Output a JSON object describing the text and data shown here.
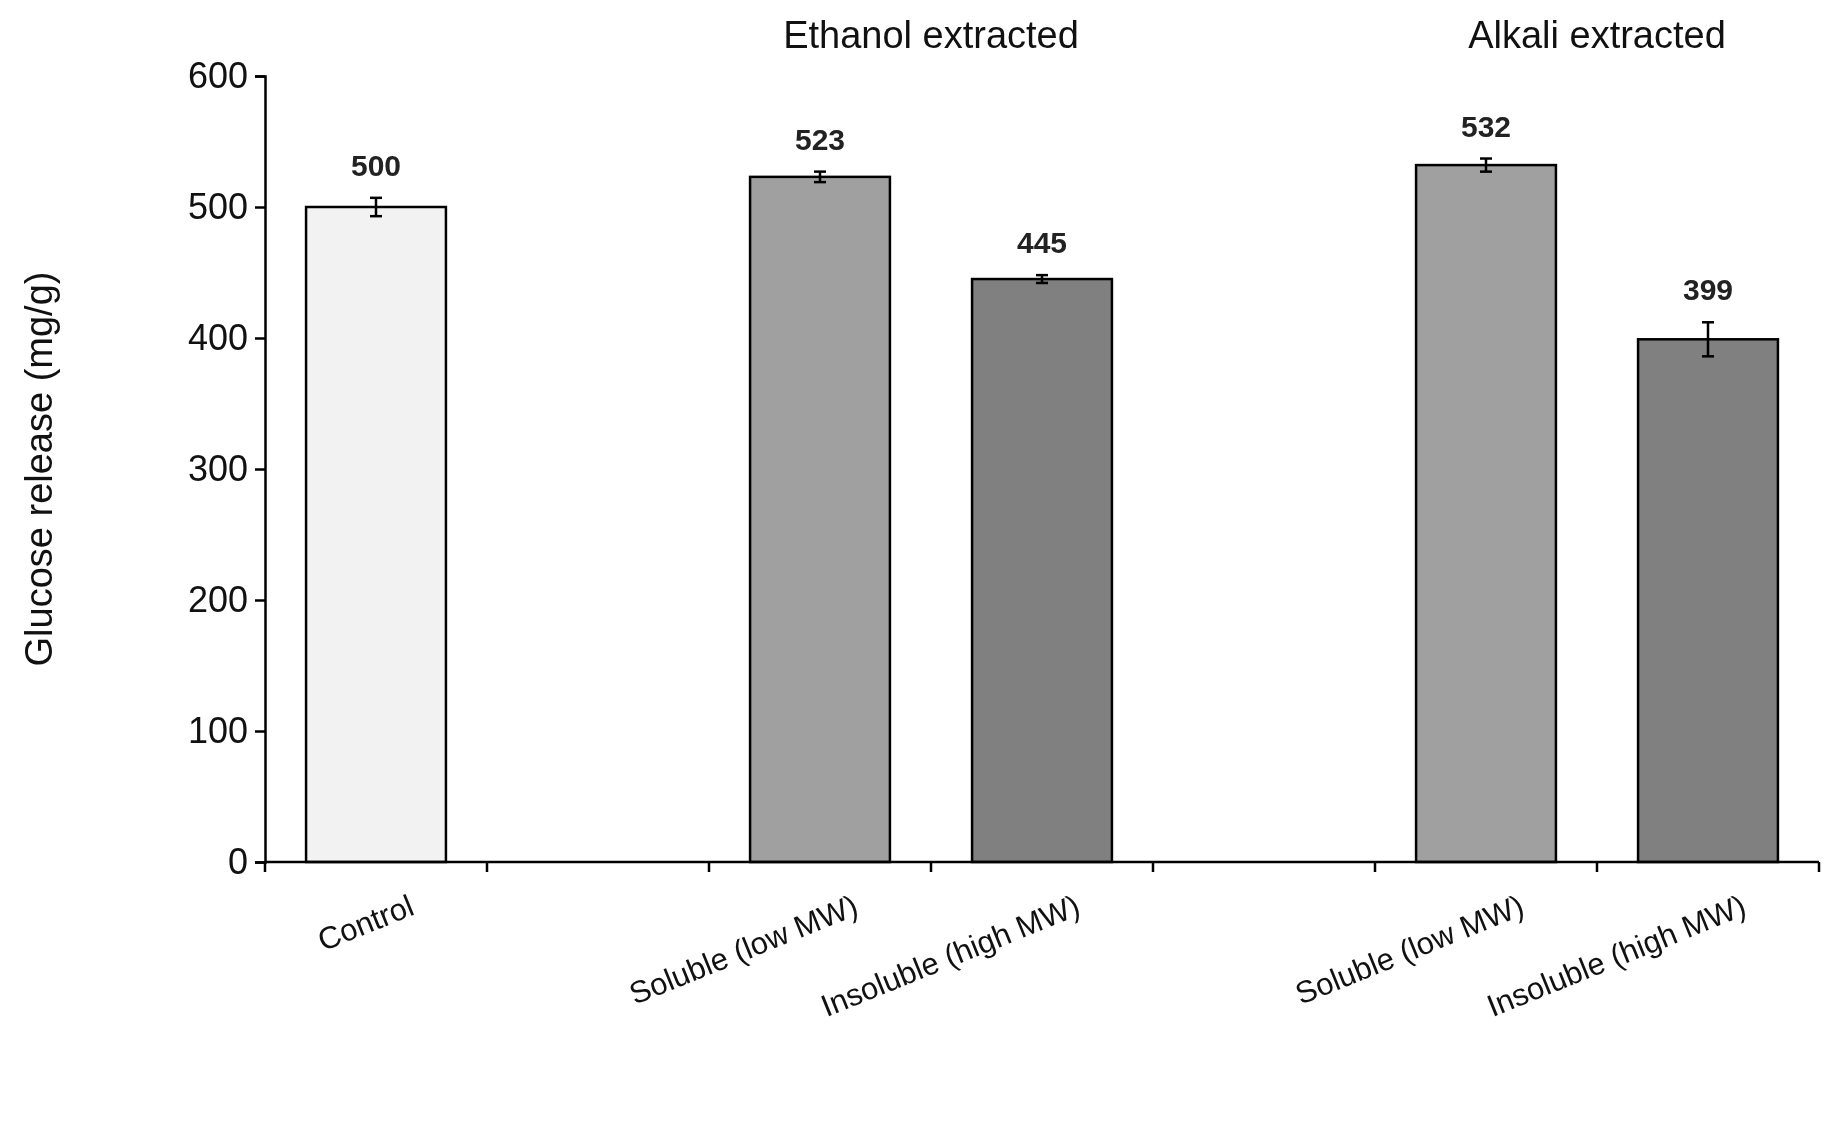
{
  "chart_data": {
    "type": "bar",
    "ylabel": "Glucose release (mg/g)",
    "categories": [
      "Control",
      null,
      "Soluble (low MW)",
      "Insoluble (high MW)",
      null,
      "Soluble (low MW)",
      "Insoluble (high MW)"
    ],
    "values": [
      500,
      null,
      523,
      445,
      null,
      532,
      399
    ],
    "errors": [
      7,
      null,
      4,
      3,
      null,
      5,
      13
    ],
    "colors": [
      "#f2f2f2",
      null,
      "#a0a0a0",
      "#808080",
      null,
      "#a0a0a0",
      "#808080"
    ],
    "data_labels": true,
    "ylim": [
      0,
      600
    ],
    "yticks": [
      0,
      100,
      200,
      300,
      400,
      500,
      600
    ],
    "annotations": [
      "Ethanol extracted",
      "Alkali extracted"
    ]
  }
}
